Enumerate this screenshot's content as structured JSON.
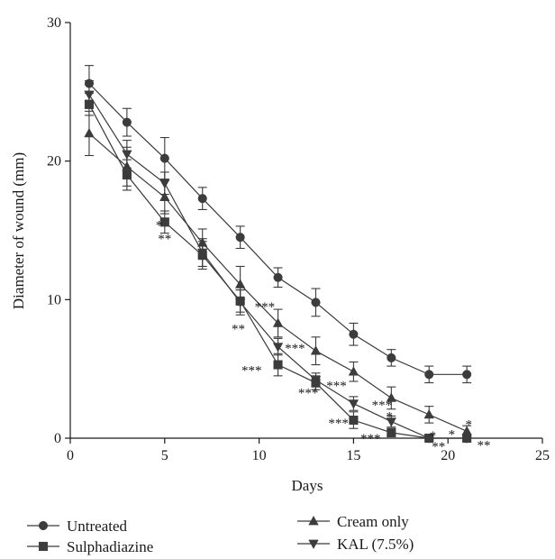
{
  "chart_data": {
    "type": "line",
    "xlabel": "Days",
    "ylabel": "Diameter of wound (mm)",
    "xlim": [
      0,
      25
    ],
    "ylim": [
      0,
      30
    ],
    "xticks": [
      0,
      5,
      10,
      15,
      20,
      25
    ],
    "yticks": [
      0,
      10,
      20,
      30
    ],
    "grid": false,
    "legend_position": "bottom",
    "series": [
      {
        "name": "Untreated",
        "marker": "circle",
        "x": [
          1,
          3,
          5,
          7,
          9,
          11,
          13,
          15,
          17,
          19,
          21
        ],
        "y": [
          25.6,
          22.8,
          20.2,
          17.3,
          14.5,
          11.6,
          9.8,
          7.5,
          5.8,
          4.6,
          4.6
        ],
        "err": [
          1.3,
          1.0,
          1.5,
          0.8,
          0.8,
          0.7,
          1.0,
          0.8,
          0.6,
          0.6,
          0.6
        ]
      },
      {
        "name": "Sulphadiazine",
        "marker": "square",
        "x": [
          1,
          3,
          5,
          7,
          9,
          11,
          13,
          15,
          17,
          19,
          21
        ],
        "y": [
          24.1,
          19.0,
          15.6,
          13.2,
          9.9,
          5.3,
          4.0,
          1.3,
          0.4,
          0.0,
          0.0
        ],
        "err": [
          0.8,
          1.1,
          0.8,
          1.0,
          0.8,
          0.8,
          0.5,
          0.6,
          0.3,
          0.1,
          0.1
        ]
      },
      {
        "name": "Cream only",
        "marker": "triangle-up",
        "x": [
          1,
          3,
          5,
          7,
          9,
          11,
          13,
          15,
          17,
          19,
          21
        ],
        "y": [
          22.0,
          19.6,
          17.4,
          14.1,
          11.1,
          8.3,
          6.3,
          4.8,
          2.9,
          1.7,
          0.5
        ],
        "err": [
          1.6,
          1.4,
          1.2,
          1.0,
          1.3,
          1.0,
          1.0,
          0.7,
          0.8,
          0.6,
          0.4
        ]
      },
      {
        "name": "KAL (7.5%)",
        "marker": "triangle-down",
        "x": [
          1,
          3,
          5,
          7,
          9,
          11,
          13,
          15,
          17,
          19,
          21
        ],
        "y": [
          24.8,
          20.5,
          18.4,
          13.4,
          9.8,
          6.6,
          4.2,
          2.5,
          1.2,
          0.0,
          0.0
        ],
        "err": [
          1.0,
          1.0,
          0.8,
          1.0,
          0.9,
          0.6,
          0.5,
          0.5,
          0.4,
          0.1,
          0.1
        ]
      }
    ],
    "annotations": [
      {
        "text": "*",
        "x": 4.7,
        "y": 15.4
      },
      {
        "text": "**",
        "x": 5.0,
        "y": 14.4
      },
      {
        "text": "***",
        "x": 10.3,
        "y": 9.5
      },
      {
        "text": "**",
        "x": 8.9,
        "y": 7.9
      },
      {
        "text": "***",
        "x": 11.9,
        "y": 6.5
      },
      {
        "text": "***",
        "x": 9.6,
        "y": 4.9
      },
      {
        "text": "***",
        "x": 14.1,
        "y": 3.8
      },
      {
        "text": "***",
        "x": 12.6,
        "y": 3.3
      },
      {
        "text": "***",
        "x": 16.5,
        "y": 2.4
      },
      {
        "text": "*",
        "x": 16.9,
        "y": 1.6
      },
      {
        "text": "***",
        "x": 14.2,
        "y": 1.1
      },
      {
        "text": "***",
        "x": 15.9,
        "y": 0.0
      },
      {
        "text": "*",
        "x": 19.2,
        "y": 0.2
      },
      {
        "text": "*",
        "x": 20.2,
        "y": 0.3
      },
      {
        "text": "*",
        "x": 21.1,
        "y": 1.0
      },
      {
        "text": "**",
        "x": 19.5,
        "y": -0.6
      },
      {
        "text": "**",
        "x": 21.9,
        "y": -0.5
      }
    ]
  }
}
